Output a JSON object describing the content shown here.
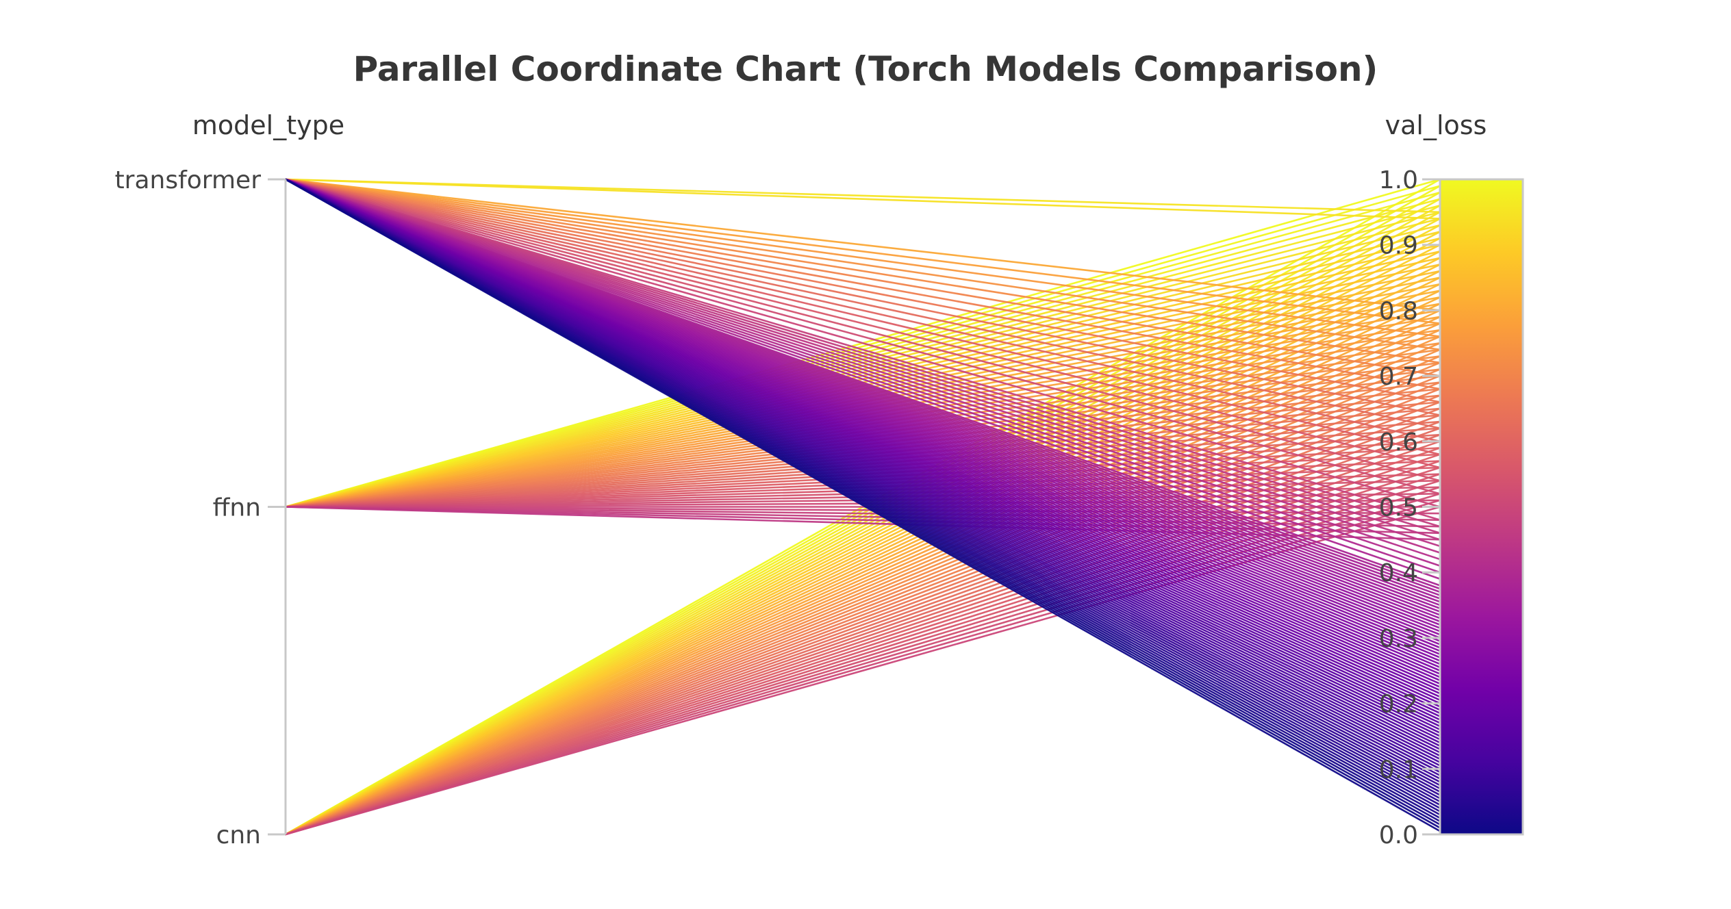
{
  "chart_data": {
    "type": "parallel-coordinates",
    "title": "Parallel Coordinate Chart (Torch Models Comparison)",
    "dimensions": [
      {
        "label": "model_type",
        "type": "categorical",
        "categories": [
          "transformer",
          "ffnn",
          "cnn"
        ]
      },
      {
        "label": "val_loss",
        "type": "numeric",
        "range": [
          0,
          1.0
        ],
        "ticks": [
          "1.0",
          "0.9",
          "0.8",
          "0.7",
          "0.6",
          "0.5",
          "0.4",
          "0.3",
          "0.2",
          "0.1",
          "0.0"
        ]
      }
    ],
    "colorscale": {
      "name": "plasma",
      "colors": [
        "#0d0887",
        "#46039f",
        "#7201a8",
        "#9c179e",
        "#bd3786",
        "#d8576b",
        "#ed7953",
        "#fb9f3a",
        "#fdca26",
        "#f0f921"
      ],
      "range": [
        0,
        1.0
      ],
      "colorbar": true
    },
    "groups": [
      {
        "model_type": "transformer",
        "val_loss": [
          0.005,
          0.01,
          0.015,
          0.02,
          0.025,
          0.03,
          0.035,
          0.04,
          0.045,
          0.05,
          0.055,
          0.06,
          0.065,
          0.07,
          0.075,
          0.08,
          0.085,
          0.09,
          0.095,
          0.1,
          0.105,
          0.11,
          0.115,
          0.12,
          0.125,
          0.13,
          0.135,
          0.14,
          0.145,
          0.15,
          0.155,
          0.16,
          0.165,
          0.17,
          0.175,
          0.18,
          0.185,
          0.19,
          0.195,
          0.2,
          0.205,
          0.21,
          0.215,
          0.22,
          0.225,
          0.23,
          0.235,
          0.24,
          0.245,
          0.25,
          0.255,
          0.26,
          0.265,
          0.27,
          0.275,
          0.28,
          0.285,
          0.29,
          0.295,
          0.3,
          0.305,
          0.31,
          0.315,
          0.32,
          0.325,
          0.33,
          0.335,
          0.34,
          0.345,
          0.35,
          0.355,
          0.36,
          0.365,
          0.37,
          0.375,
          0.38,
          0.39,
          0.4,
          0.41,
          0.42,
          0.43,
          0.44,
          0.45,
          0.46,
          0.47,
          0.48,
          0.5,
          0.52,
          0.54,
          0.56,
          0.58,
          0.6,
          0.62,
          0.64,
          0.66,
          0.68,
          0.7,
          0.72,
          0.74,
          0.76,
          0.78,
          0.8,
          0.94,
          0.95
        ]
      },
      {
        "model_type": "ffnn",
        "val_loss": [
          0.45,
          0.46,
          0.47,
          0.48,
          0.49,
          0.5,
          0.51,
          0.52,
          0.53,
          0.54,
          0.55,
          0.56,
          0.57,
          0.58,
          0.59,
          0.6,
          0.61,
          0.62,
          0.63,
          0.64,
          0.65,
          0.66,
          0.67,
          0.68,
          0.69,
          0.7,
          0.71,
          0.72,
          0.73,
          0.74,
          0.75,
          0.76,
          0.77,
          0.78,
          0.79,
          0.8,
          0.81,
          0.82,
          0.83,
          0.84,
          0.85,
          0.86,
          0.87,
          0.88,
          0.89,
          0.9,
          0.91,
          0.92,
          0.93,
          0.94,
          0.95,
          0.96,
          0.97,
          0.98,
          0.99,
          1.0
        ]
      },
      {
        "model_type": "cnn",
        "val_loss": [
          0.5,
          0.51,
          0.52,
          0.53,
          0.54,
          0.55,
          0.56,
          0.57,
          0.58,
          0.59,
          0.6,
          0.61,
          0.62,
          0.63,
          0.64,
          0.65,
          0.66,
          0.67,
          0.68,
          0.69,
          0.7,
          0.71,
          0.72,
          0.73,
          0.74,
          0.75,
          0.76,
          0.77,
          0.78,
          0.79,
          0.8,
          0.81,
          0.82,
          0.83,
          0.84,
          0.85,
          0.86,
          0.87,
          0.88,
          0.89,
          0.9,
          0.91,
          0.92,
          0.93,
          0.94,
          0.95,
          0.96,
          0.97,
          0.98,
          0.99,
          1.0
        ]
      }
    ],
    "background": "#ffffff"
  }
}
